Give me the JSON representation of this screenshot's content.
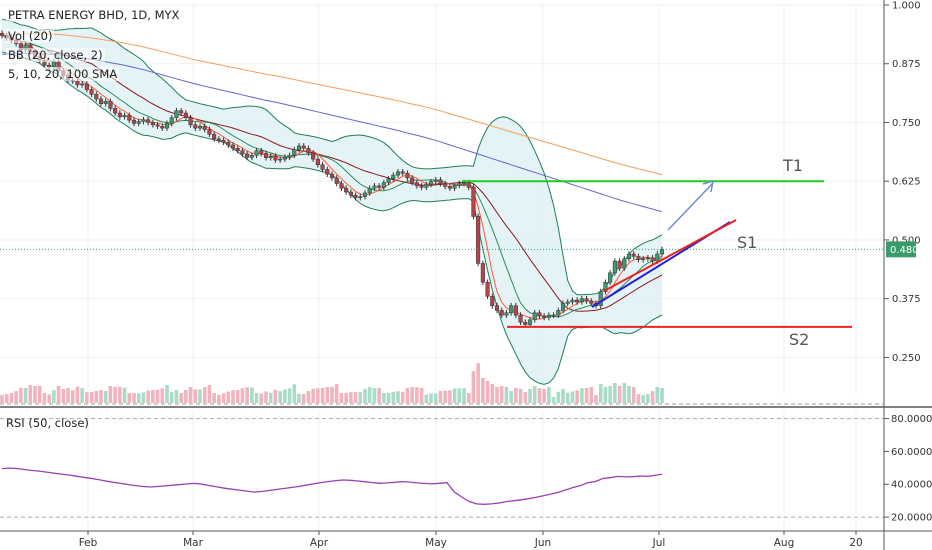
{
  "header": {
    "symbol_line": "PETRA ENERGY BHD, 1D, MYX",
    "indicators": [
      "Vol (20)",
      "BB (20, close, 2)",
      "5, 10, 20, 100 SMA"
    ]
  },
  "rsi_panel": {
    "title": "RSI (50, close)"
  },
  "colors": {
    "up": "#3d9970",
    "down": "#b5444b",
    "vol_up": "#a9dbc6",
    "vol_down": "#f1b4be",
    "bb": "#1e7e55",
    "bb_fill": "#d8eef2",
    "sma5": "#ff5a36",
    "sma10": "#2e8b57",
    "sma20": "#8b1a1a",
    "sma100": "#6666cc",
    "sma_long": "#f6a05a",
    "rsi": "#9b3fb5",
    "target_line": "#22cc22",
    "support_line": "#ee2222",
    "trend_red": "#ee2222",
    "trend_blue": "#2222dd",
    "arrow": "#6d8fc7",
    "price_badge": "#3b9a6b"
  },
  "chart_data": [
    {
      "type": "candlestick",
      "title": "PETRA ENERGY BHD, 1D, MYX",
      "x_ticks": [
        "Feb",
        "Mar",
        "Apr",
        "May",
        "Jun",
        "Jul",
        "Aug",
        "20"
      ],
      "y_ticks": [
        "1.000",
        "0.875",
        "0.750",
        "0.625",
        "0.500",
        "0.375",
        "0.250"
      ],
      "ylim": [
        0.17,
        1.0
      ],
      "last_price": "0.480",
      "close_series": [
        0.935,
        0.93,
        0.925,
        0.918,
        0.905,
        0.915,
        0.9,
        0.89,
        0.882,
        0.872,
        0.868,
        0.88,
        0.86,
        0.85,
        0.84,
        0.838,
        0.83,
        0.832,
        0.82,
        0.81,
        0.8,
        0.79,
        0.795,
        0.78,
        0.77,
        0.762,
        0.765,
        0.755,
        0.748,
        0.752,
        0.756,
        0.75,
        0.745,
        0.742,
        0.738,
        0.748,
        0.76,
        0.775,
        0.77,
        0.76,
        0.745,
        0.738,
        0.742,
        0.735,
        0.725,
        0.715,
        0.712,
        0.708,
        0.702,
        0.695,
        0.69,
        0.683,
        0.676,
        0.68,
        0.69,
        0.684,
        0.675,
        0.678,
        0.67,
        0.672,
        0.676,
        0.68,
        0.692,
        0.7,
        0.695,
        0.685,
        0.672,
        0.66,
        0.65,
        0.64,
        0.632,
        0.62,
        0.61,
        0.602,
        0.595,
        0.59,
        0.592,
        0.6,
        0.61,
        0.615,
        0.612,
        0.622,
        0.63,
        0.638,
        0.645,
        0.642,
        0.632,
        0.622,
        0.615,
        0.612,
        0.618,
        0.624,
        0.628,
        0.62,
        0.614,
        0.61,
        0.616,
        0.62,
        0.622,
        0.612,
        0.55,
        0.45,
        0.41,
        0.38,
        0.36,
        0.35,
        0.34,
        0.345,
        0.36,
        0.34,
        0.325,
        0.32,
        0.33,
        0.345,
        0.338,
        0.335,
        0.34,
        0.34,
        0.35,
        0.365,
        0.368,
        0.372,
        0.368,
        0.375,
        0.37,
        0.365,
        0.36,
        0.39,
        0.41,
        0.43,
        0.455,
        0.44,
        0.46,
        0.47,
        0.465,
        0.458,
        0.46,
        0.462,
        0.455,
        0.47,
        0.48
      ],
      "sma100_series": [
        0.895,
        0.896,
        0.897,
        0.897,
        0.896,
        0.895,
        0.893,
        0.89,
        0.887,
        0.884,
        0.88,
        0.876,
        0.872,
        0.867,
        0.862,
        0.856,
        0.85,
        0.844,
        0.838,
        0.832,
        0.827,
        0.822,
        0.817,
        0.812,
        0.807,
        0.802,
        0.797,
        0.793,
        0.788,
        0.783,
        0.778,
        0.773,
        0.768,
        0.763,
        0.758,
        0.753,
        0.748,
        0.743,
        0.738,
        0.733,
        0.727,
        0.722,
        0.716,
        0.71,
        0.703,
        0.696,
        0.689,
        0.682,
        0.675,
        0.668,
        0.661,
        0.654,
        0.647,
        0.64,
        0.633,
        0.626,
        0.619,
        0.612,
        0.605,
        0.598,
        0.591,
        0.584,
        0.578,
        0.572,
        0.566,
        0.56
      ],
      "bb_upper_extremes": [
        0.94,
        0.77,
        0.49
      ],
      "bb_lower_extremes": [
        0.79,
        0.205,
        0.335
      ],
      "annotations": [
        {
          "label": "T1",
          "price": 0.625
        },
        {
          "label": "S1",
          "price": 0.48
        },
        {
          "label": "S2",
          "price": 0.315
        }
      ]
    },
    {
      "type": "line",
      "title": "RSI (50, close)",
      "y_ticks": [
        "80.0000",
        "60.0000",
        "40.0000",
        "20.0000"
      ],
      "ylim": [
        17,
        84
      ],
      "series": [
        {
          "values": [
            49.5,
            49.8,
            49.6,
            49.0,
            48.4,
            48.0,
            47.4,
            46.8,
            46.2,
            45.6,
            44.9,
            44.2,
            43.6,
            42.8,
            42.0,
            41.2,
            40.5,
            39.8,
            39.2,
            38.6,
            38.3,
            38.6,
            39.0,
            39.4,
            39.8,
            40.2,
            40.5,
            40.0,
            39.2,
            38.4,
            37.6,
            37.0,
            36.4,
            35.8,
            35.2,
            35.6,
            36.2,
            36.8,
            37.4,
            38.0,
            38.6,
            39.4,
            40.2,
            41.0,
            41.6,
            42.2,
            42.6,
            42.4,
            42.0,
            41.5,
            41.0,
            40.6,
            40.8,
            41.2,
            41.6,
            41.3,
            40.8,
            40.5,
            40.2,
            40.6,
            41.0,
            35.2,
            32.2,
            29.5,
            28.0,
            27.8,
            28.0,
            28.6,
            29.4,
            30.0,
            30.5,
            31.2,
            32.0,
            33.0,
            34.0,
            35.0,
            36.5,
            38.0,
            39.2,
            41.0,
            41.6,
            43.5,
            44.0,
            44.8,
            44.5,
            44.6,
            45.0,
            44.8,
            45.4,
            46.2
          ]
        }
      ]
    }
  ]
}
